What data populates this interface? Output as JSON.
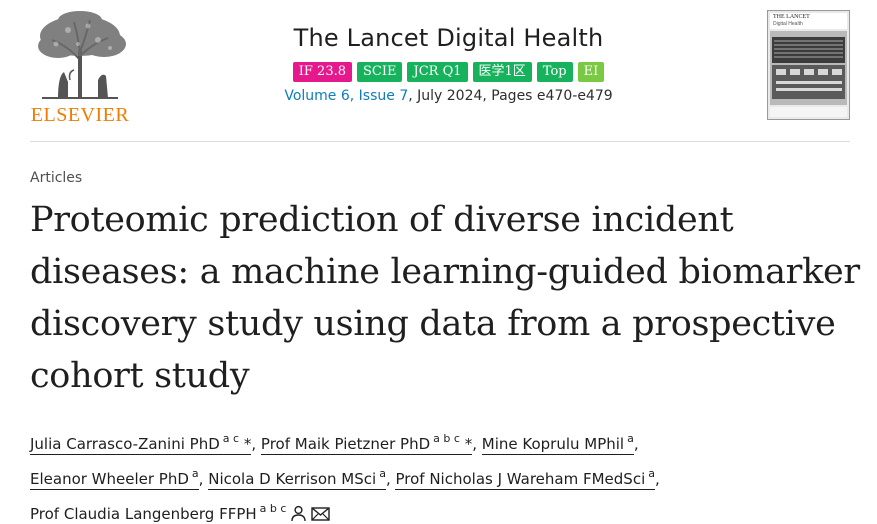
{
  "publisher": {
    "name": "ELSEVIER"
  },
  "journal": {
    "title": "The Lancet Digital Health",
    "badges": [
      {
        "label": "IF 23.8",
        "color": "#e6198c"
      },
      {
        "label": "SCIE",
        "color": "#17b35c"
      },
      {
        "label": "JCR Q1",
        "color": "#17b35c"
      },
      {
        "label": "医学1区",
        "color": "#17b35c"
      },
      {
        "label": "Top",
        "color": "#17b35c"
      },
      {
        "label": "EI",
        "color": "#7ac943"
      }
    ],
    "volume_link": "Volume 6, Issue 7",
    "volume_rest": ", July 2024, Pages e470-e479",
    "cover": {
      "line1": "THE LANCET",
      "line2": "Digital Health"
    }
  },
  "article": {
    "type": "Articles",
    "title": "Proteomic prediction of diverse incident diseases: a machine learning-guided biomarker discovery study using data from a prospective cohort study"
  },
  "authors": [
    {
      "name": "Julia Carrasco-Zanini PhD",
      "sup": "a c",
      "star": "*"
    },
    {
      "name": "Prof Maik Pietzner PhD",
      "sup": "a b c",
      "star": "*"
    },
    {
      "name": "Mine Koprulu MPhil",
      "sup": "a"
    },
    {
      "name": "Eleanor Wheeler PhD",
      "sup": "a"
    },
    {
      "name": "Nicola D Kerrison MSci",
      "sup": "a"
    },
    {
      "name": "Prof Nicholas J Wareham FMedSci",
      "sup": "a"
    },
    {
      "name": "Prof Claudia Langenberg FFPH",
      "sup": "a b c"
    }
  ],
  "colors": {
    "link": "#0c7dbb",
    "elsevier_orange": "#f07c00"
  },
  "icons": {
    "person": "person-icon",
    "mail": "envelope-icon"
  }
}
